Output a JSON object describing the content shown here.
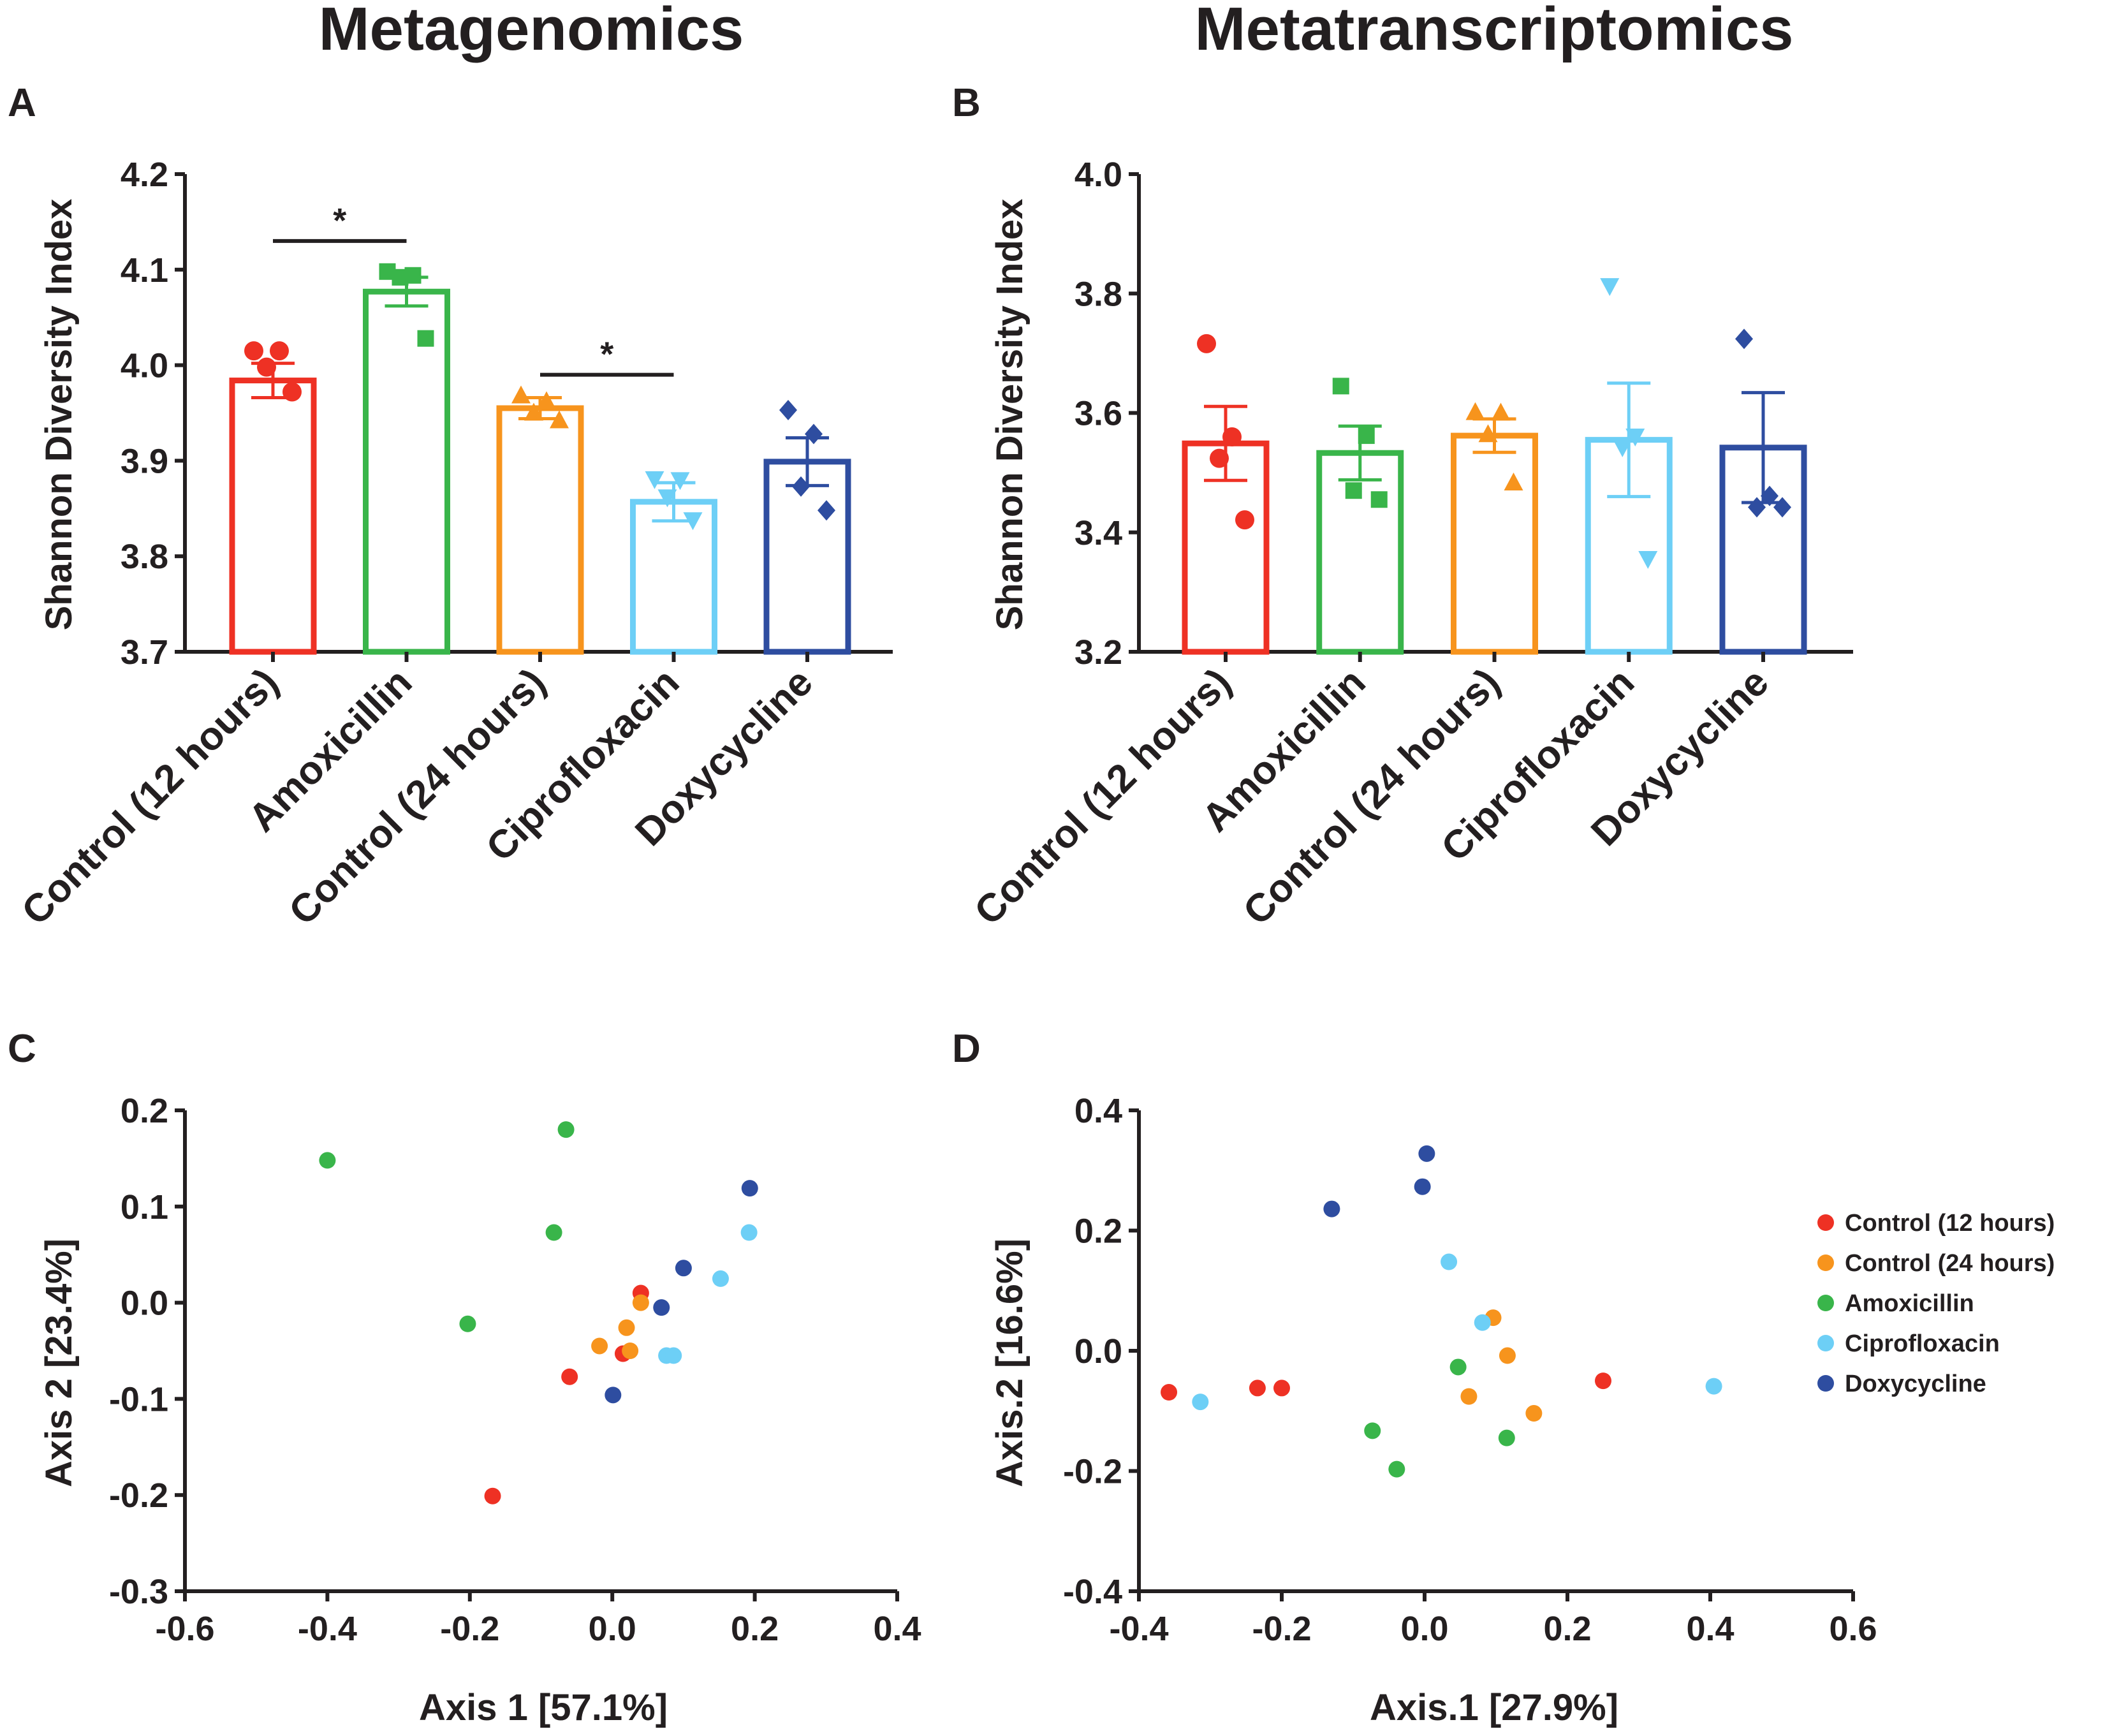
{
  "column_titles": {
    "left": "Metagenomics",
    "right": "Metatranscriptomics"
  },
  "panel_letters": {
    "A": "A",
    "B": "B",
    "C": "C",
    "D": "D"
  },
  "colors": {
    "Control (12 hours)": "#ee3124",
    "Amoxicillin": "#39b54a",
    "Control (24 hours)": "#f7941d",
    "Ciprofloxacin": "#6dcff6",
    "Doxycycline": "#2e4da0"
  },
  "chart_data": [
    {
      "id": "A",
      "type": "bar",
      "title": "Metagenomics",
      "ylabel": "Shannon Diversity Index",
      "xlabel": "",
      "ylim": [
        3.7,
        4.2
      ],
      "yticks": [
        "3.7",
        "3.8",
        "3.9",
        "4.0",
        "4.1",
        "4.2"
      ],
      "categories": [
        "Control (12 hours)",
        "Amoxicillin",
        "Control (24 hours)",
        "Ciprofloxacin",
        "Doxycycline"
      ],
      "markers": [
        "circle",
        "square",
        "triangle-up",
        "triangle-down",
        "diamond"
      ],
      "values": [
        3.984,
        4.077,
        3.955,
        3.857,
        3.899
      ],
      "sem": [
        0.018,
        0.015,
        0.011,
        0.02,
        0.025
      ],
      "points": [
        [
          4.015,
          4.015,
          3.998,
          3.972
        ],
        [
          4.098,
          4.094,
          4.092,
          4.028
        ],
        [
          3.968,
          3.962,
          3.95,
          3.942
        ],
        [
          3.881,
          3.88,
          3.862,
          3.838
        ],
        [
          3.953,
          3.928,
          3.873,
          3.848
        ]
      ],
      "significance": [
        {
          "from": "Control (12 hours)",
          "to": "Amoxicillin",
          "label": "*",
          "y": 4.13
        },
        {
          "from": "Control (24 hours)",
          "to": "Ciprofloxacin",
          "label": "*",
          "y": 3.99
        }
      ]
    },
    {
      "id": "B",
      "type": "bar",
      "title": "Metatranscriptomics",
      "ylabel": "Shannon Diversity Index",
      "xlabel": "",
      "ylim": [
        3.2,
        4.0
      ],
      "yticks": [
        "3.2",
        "3.4",
        "3.6",
        "3.8",
        "4.0"
      ],
      "categories": [
        "Control (12 hours)",
        "Amoxicillin",
        "Control (24 hours)",
        "Ciprofloxacin",
        "Doxycycline"
      ],
      "markers": [
        "circle",
        "square",
        "triangle-up",
        "triangle-down",
        "diamond"
      ],
      "values": [
        3.549,
        3.533,
        3.562,
        3.555,
        3.542
      ],
      "sem": [
        0.062,
        0.045,
        0.028,
        0.095,
        0.092
      ],
      "points": [
        [
          3.716,
          3.56,
          3.524,
          3.421
        ],
        [
          3.645,
          3.562,
          3.47,
          3.455
        ],
        [
          3.601,
          3.6,
          3.564,
          3.483
        ],
        [
          3.813,
          3.561,
          3.543,
          3.356
        ],
        [
          3.724,
          3.461,
          3.442,
          3.442
        ]
      ]
    },
    {
      "id": "C",
      "type": "scatter",
      "xlabel": "Axis 1 [57.1%]",
      "ylabel": "Axis 2 [23.4%]",
      "xlim": [
        -0.6,
        0.4
      ],
      "ylim": [
        -0.3,
        0.2
      ],
      "xticks": [
        "-0.6",
        "-0.4",
        "-0.2",
        "0.0",
        "0.2",
        "0.4"
      ],
      "yticks": [
        "-0.3",
        "-0.2",
        "-0.1",
        "0.0",
        "0.1",
        "0.2"
      ],
      "series": [
        {
          "name": "Control (12 hours)",
          "x": [
            0.04,
            0.015,
            -0.06,
            -0.168
          ],
          "y": [
            0.01,
            -0.053,
            -0.077,
            -0.201
          ]
        },
        {
          "name": "Control (24 hours)",
          "x": [
            0.04,
            0.02,
            -0.018,
            0.025
          ],
          "y": [
            0.0,
            -0.026,
            -0.045,
            -0.05
          ]
        },
        {
          "name": "Amoxicillin",
          "x": [
            -0.065,
            -0.4,
            -0.082,
            -0.203
          ],
          "y": [
            0.18,
            0.148,
            0.073,
            -0.022
          ]
        },
        {
          "name": "Ciprofloxacin",
          "x": [
            0.192,
            0.152,
            0.076,
            0.086
          ],
          "y": [
            0.073,
            0.025,
            -0.055,
            -0.055
          ]
        },
        {
          "name": "Doxycycline",
          "x": [
            0.193,
            0.1,
            0.069,
            0.001
          ],
          "y": [
            0.119,
            0.036,
            -0.005,
            -0.096
          ]
        }
      ]
    },
    {
      "id": "D",
      "type": "scatter",
      "xlabel": "Axis.1 [27.9%]",
      "ylabel": "Axis.2 [16.6%]",
      "xlim": [
        -0.4,
        0.6
      ],
      "ylim": [
        -0.4,
        0.4
      ],
      "xticks": [
        "-0.4",
        "-0.2",
        "0.0",
        "0.2",
        "0.4",
        "0.6"
      ],
      "yticks": [
        "-0.4",
        "-0.2",
        "0.0",
        "0.2",
        "0.4"
      ],
      "legend": [
        "Control (12 hours)",
        "Control (24 hours)",
        "Amoxicillin",
        "Ciprofloxacin",
        "Doxycycline"
      ],
      "legend_position": "right",
      "series": [
        {
          "name": "Control (12 hours)",
          "x": [
            -0.358,
            -0.234,
            -0.2,
            0.25
          ],
          "y": [
            -0.069,
            -0.062,
            -0.062,
            -0.05
          ]
        },
        {
          "name": "Control (24 hours)",
          "x": [
            0.096,
            0.116,
            0.062,
            0.153
          ],
          "y": [
            0.055,
            -0.008,
            -0.076,
            -0.104
          ]
        },
        {
          "name": "Amoxicillin",
          "x": [
            0.047,
            -0.073,
            0.115,
            -0.039
          ],
          "y": [
            -0.027,
            -0.133,
            -0.145,
            -0.197
          ]
        },
        {
          "name": "Ciprofloxacin",
          "x": [
            0.034,
            0.081,
            -0.314,
            0.405
          ],
          "y": [
            0.148,
            0.047,
            -0.085,
            -0.059
          ]
        },
        {
          "name": "Doxycycline",
          "x": [
            0.003,
            -0.003,
            -0.13
          ],
          "y": [
            0.328,
            0.273,
            0.236
          ]
        }
      ]
    }
  ]
}
